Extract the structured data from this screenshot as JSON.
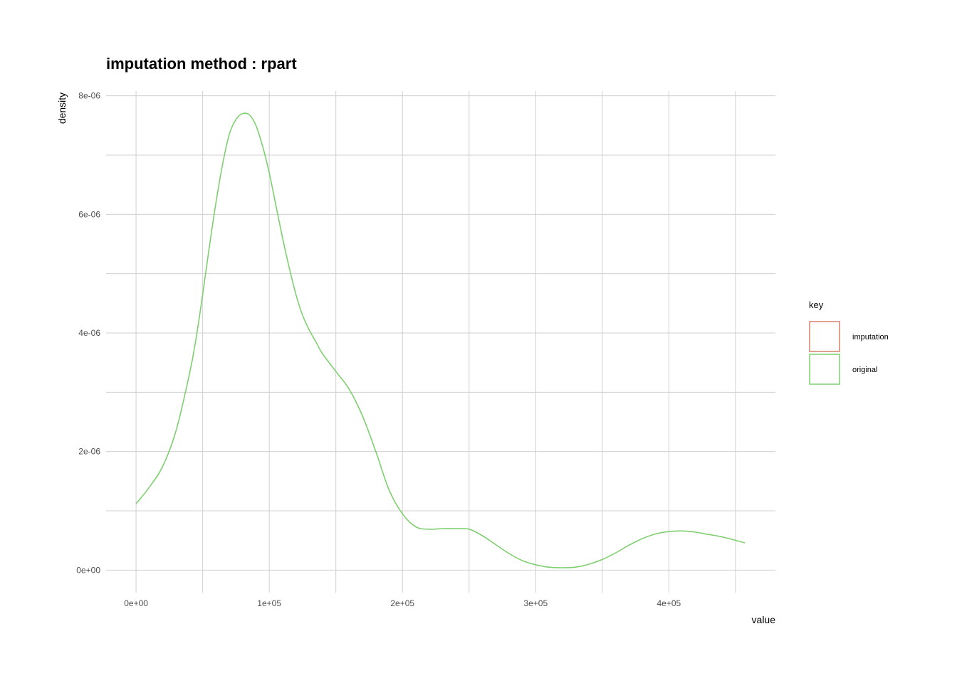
{
  "chart_data": {
    "type": "line",
    "title": "imputation method : rpart",
    "xlabel": "value",
    "ylabel": "density",
    "xlim": [
      -22500,
      480000
    ],
    "ylim": [
      -3.8e-07,
      8.08e-06
    ],
    "x_ticks": [
      0,
      100000,
      200000,
      300000,
      400000
    ],
    "x_tick_labels": [
      "0e+00",
      "1e+05",
      "2e+05",
      "3e+05",
      "4e+05"
    ],
    "x_minor_ticks": [
      50000,
      150000,
      250000,
      350000,
      450000
    ],
    "y_ticks": [
      0,
      2e-06,
      4e-06,
      6e-06,
      8e-06
    ],
    "y_tick_labels": [
      "0e+00",
      "2e-06",
      "4e-06",
      "6e-06",
      "8e-06"
    ],
    "y_minor_ticks": [
      1e-06,
      3e-06,
      5e-06,
      7e-06
    ],
    "grid": true,
    "legend": {
      "title": "key",
      "position": "right",
      "entries": [
        {
          "label": "imputation",
          "color": "#d6806e"
        },
        {
          "label": "original",
          "color": "#7fcf70"
        }
      ]
    },
    "series": [
      {
        "name": "original",
        "color": "#7fcf70",
        "x": [
          0,
          10000,
          20000,
          30000,
          40000,
          45000,
          50000,
          55000,
          60000,
          65000,
          70000,
          75000,
          80000,
          85000,
          90000,
          95000,
          100000,
          105000,
          110000,
          115000,
          120000,
          125000,
          130000,
          135000,
          140000,
          150000,
          160000,
          170000,
          180000,
          190000,
          200000,
          210000,
          220000,
          230000,
          240000,
          250000,
          260000,
          270000,
          280000,
          290000,
          300000,
          310000,
          320000,
          330000,
          340000,
          350000,
          360000,
          370000,
          380000,
          390000,
          400000,
          410000,
          420000,
          430000,
          440000,
          457000
        ],
        "y": [
          1.12e-06,
          1.4e-06,
          1.75e-06,
          2.35e-06,
          3.3e-06,
          3.9e-06,
          4.65e-06,
          5.45e-06,
          6.2e-06,
          6.85e-06,
          7.35e-06,
          7.6e-06,
          7.7e-06,
          7.68e-06,
          7.5e-06,
          7.15e-06,
          6.7e-06,
          6.15e-06,
          5.6e-06,
          5.1e-06,
          4.65e-06,
          4.3e-06,
          4.05e-06,
          3.85e-06,
          3.65e-06,
          3.35e-06,
          3.05e-06,
          2.6e-06,
          2e-06,
          1.35e-06,
          9.5e-07,
          7.3e-07,
          6.9e-07,
          7e-07,
          7e-07,
          6.9e-07,
          5.8e-07,
          4.3e-07,
          2.8e-07,
          1.6e-07,
          9e-08,
          5e-08,
          4e-08,
          5e-08,
          1e-07,
          1.8e-07,
          2.9e-07,
          4.2e-07,
          5.3e-07,
          6.1e-07,
          6.5e-07,
          6.6e-07,
          6.4e-07,
          6e-07,
          5.6e-07,
          4.6e-07
        ]
      }
    ]
  }
}
